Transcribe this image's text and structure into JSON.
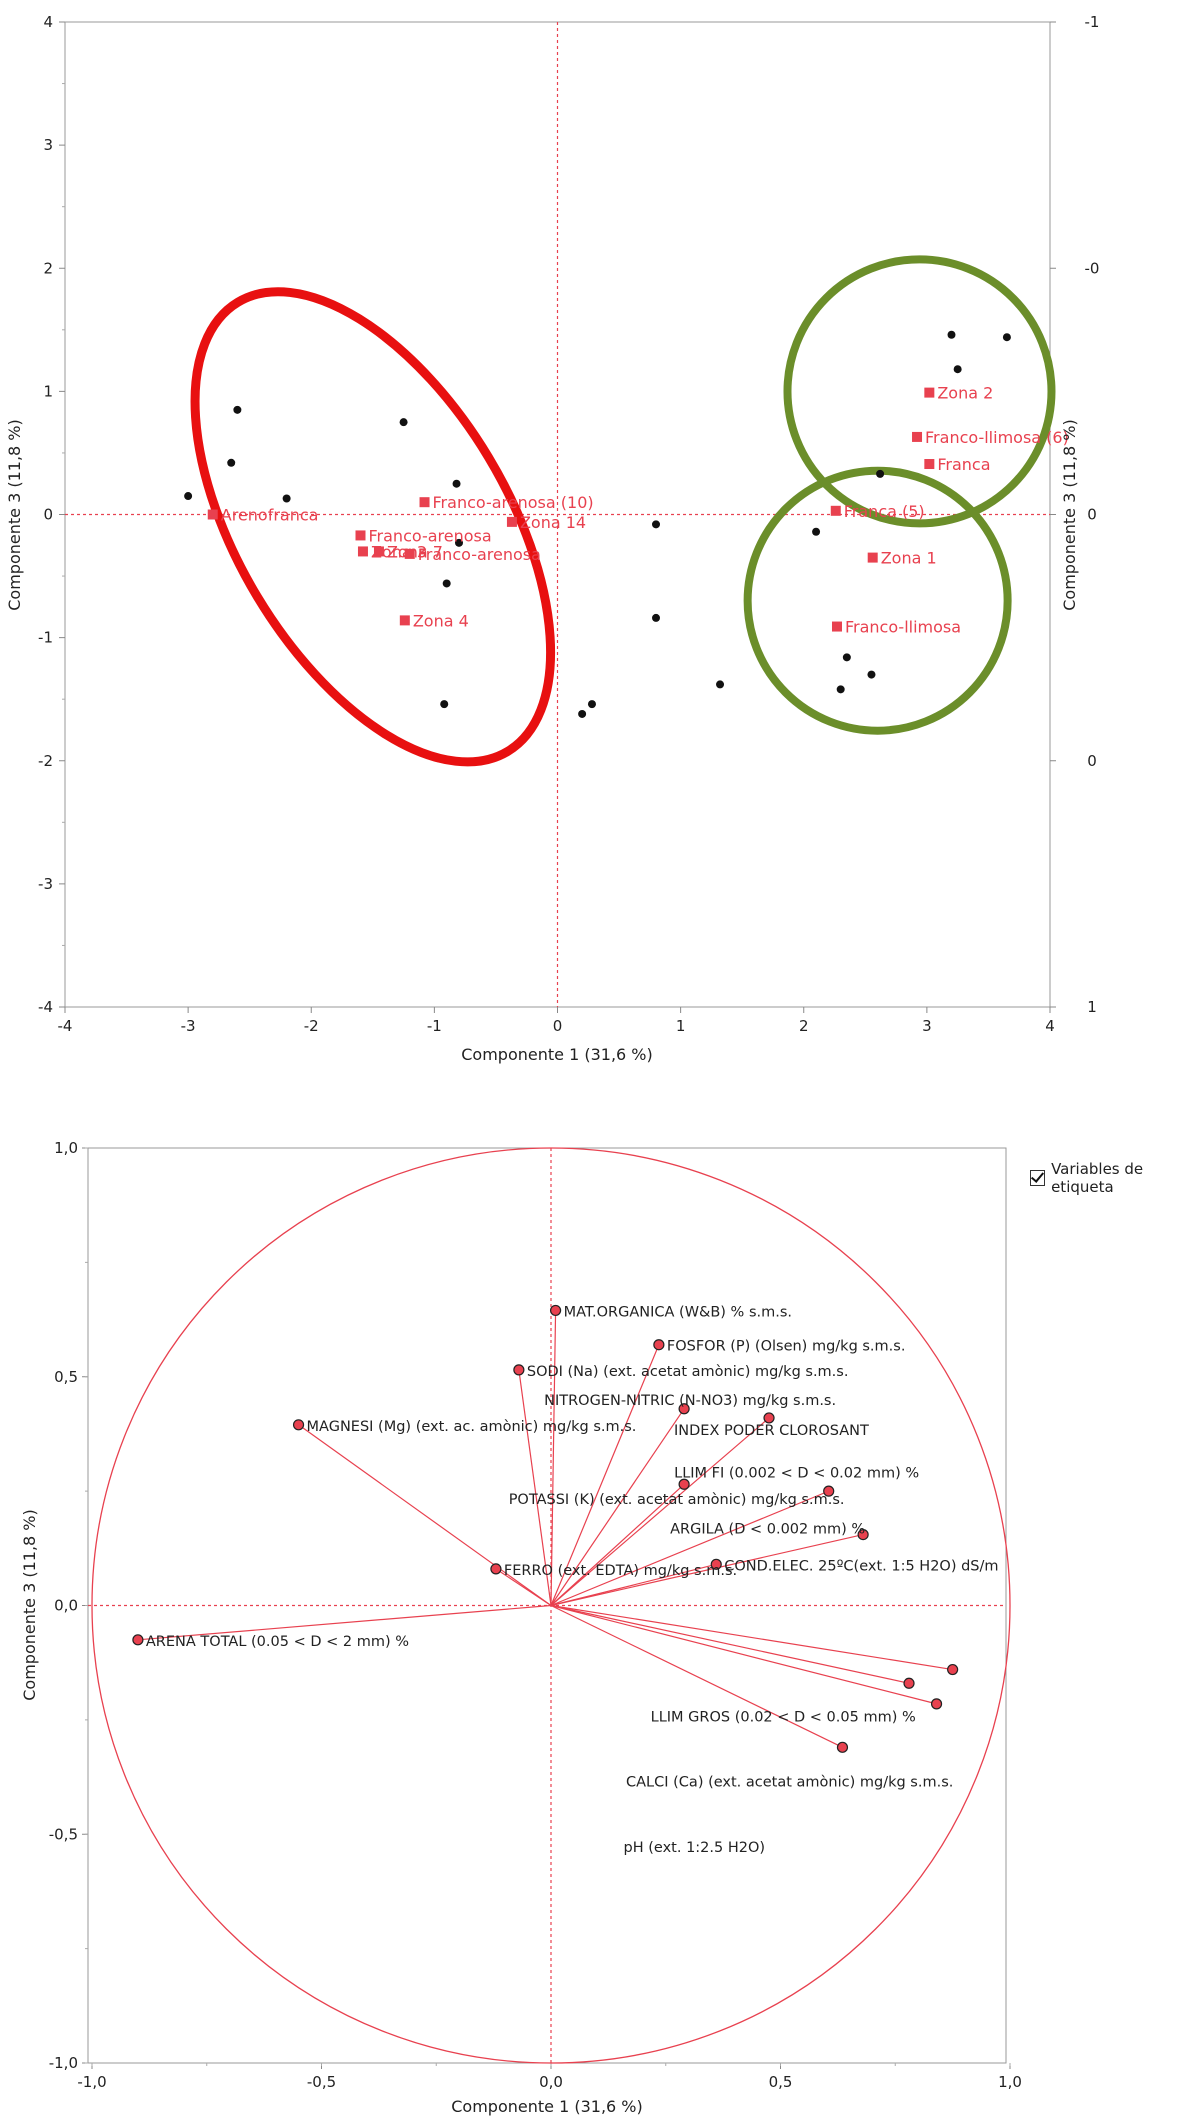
{
  "chart_data": [
    {
      "type": "scatter",
      "xlabel": "Componente 1  (31,6 %)",
      "ylabel": "Componente 3  (11,8 %)",
      "ylabel_right": "Componente 3  (11,8 %)",
      "xlim": [
        -4,
        4
      ],
      "ylim": [
        -4,
        4
      ],
      "xticks": [
        "-4",
        "-3",
        "-2",
        "-1",
        "0",
        "1",
        "2",
        "3",
        "4"
      ],
      "yticks": [
        "-4",
        "-3",
        "-2",
        "-1",
        "0",
        "1",
        "2",
        "3",
        "4"
      ],
      "yticks_right": [
        "-1",
        "-0",
        "0",
        "0",
        "1"
      ],
      "observations": [
        [
          -3.0,
          0.15
        ],
        [
          -2.6,
          0.85
        ],
        [
          -2.65,
          0.42
        ],
        [
          -2.2,
          0.13
        ],
        [
          -1.25,
          0.75
        ],
        [
          -0.82,
          0.25
        ],
        [
          -0.8,
          -0.23
        ],
        [
          -0.9,
          -0.56
        ],
        [
          -0.92,
          -1.54
        ],
        [
          0.2,
          -1.62
        ],
        [
          0.28,
          -1.54
        ],
        [
          0.8,
          -0.08
        ],
        [
          0.8,
          -0.84
        ],
        [
          1.32,
          -1.38
        ],
        [
          2.1,
          -0.14
        ],
        [
          2.62,
          0.33
        ],
        [
          2.35,
          -1.16
        ],
        [
          2.3,
          -1.42
        ],
        [
          2.55,
          -1.3
        ],
        [
          3.2,
          1.46
        ],
        [
          3.25,
          1.18
        ],
        [
          3.65,
          1.44
        ]
      ],
      "labeled_points": [
        {
          "label": "Arenofranca",
          "x": -2.8,
          "y": 0.0
        },
        {
          "label": "Franco-arenosa (10)",
          "x": -1.08,
          "y": 0.1
        },
        {
          "label": "Franco-arenosa",
          "x": -1.6,
          "y": -0.17
        },
        {
          "label": "Zona 3",
          "x": -1.58,
          "y": -0.3
        },
        {
          "label": "Zona 7",
          "x": -1.45,
          "y": -0.3
        },
        {
          "label": "Franco-arenosa",
          "x": -1.2,
          "y": -0.32
        },
        {
          "label": "Zona 14",
          "x": -0.37,
          "y": -0.06
        },
        {
          "label": "Zona 4",
          "x": -1.24,
          "y": -0.86
        },
        {
          "label": "Zona 2",
          "x": 3.02,
          "y": 0.99
        },
        {
          "label": "Franco-llimosa (6)",
          "x": 2.92,
          "y": 0.63
        },
        {
          "label": "Franca",
          "x": 3.02,
          "y": 0.41
        },
        {
          "label": "Franca (5)",
          "x": 2.26,
          "y": 0.03
        },
        {
          "label": "Zona 1",
          "x": 2.56,
          "y": -0.35
        },
        {
          "label": "Franco-llimosa",
          "x": 2.27,
          "y": -0.91
        }
      ]
    },
    {
      "type": "scatter",
      "xlabel": "Componente 1  (31,6 %)",
      "ylabel": "Componente 3  (11,8 %)",
      "xlim": [
        -1.0,
        1.0
      ],
      "ylim": [
        -1.0,
        1.0
      ],
      "xticks": [
        "-1,0",
        "-0,5",
        "0,0",
        "0,5",
        "1,0"
      ],
      "yticks": [
        "-1,0",
        "-0,5",
        "0,0",
        "0,5",
        "1,0"
      ],
      "legend": "Variables de etiqueta",
      "variables": [
        {
          "label": "MAT.ORGANICA  (W&B)  % s.m.s.",
          "x": 0.01,
          "y": 0.645
        },
        {
          "label": "FOSFOR (P) (Olsen)  mg/kg s.m.s.",
          "x": 0.235,
          "y": 0.57
        },
        {
          "label": "SODI (Na) (ext. acetat amònic)  mg/kg s.m.s.",
          "x": -0.07,
          "y": 0.515
        },
        {
          "label": "NITROGEN-NITRIC (N-NO3)  mg/kg s.m.s.",
          "x": 0.29,
          "y": 0.43
        },
        {
          "label": "INDEX PODER CLOROSANT",
          "x": 0.475,
          "y": 0.41
        },
        {
          "label": "MAGNESI (Mg) (ext. ac. amònic)  mg/kg s.m.s.",
          "x": -0.55,
          "y": 0.395
        },
        {
          "label": "LLIM FI (0.002 < D < 0.02 mm)  %",
          "x": 0.29,
          "y": 0.265
        },
        {
          "label": "POTASSI (K) (ext. acetat amònic)  mg/kg s.m.s.",
          "x": 0.605,
          "y": 0.25
        },
        {
          "label": "ARGILA (D < 0.002 mm)  %",
          "x": 0.68,
          "y": 0.155
        },
        {
          "label": "FERRO (ext. EDTA)  mg/kg s.m.s.",
          "x": -0.12,
          "y": 0.08
        },
        {
          "label": "COND.ELEC. 25ºC(ext. 1:5 H2O)  dS/m",
          "x": 0.36,
          "y": 0.09
        },
        {
          "label": "ARENA TOTAL (0.05 < D < 2 mm)  %",
          "x": -0.9,
          "y": -0.075
        },
        {
          "label": "LLIM GROS (0.02 < D < 0.05 mm)  %",
          "x": 0.875,
          "y": -0.14
        },
        {
          "label": "CALCI (Ca) (ext. acetat amònic)  mg/kg s.m.s.",
          "x": 0.78,
          "y": -0.17
        },
        {
          "label": "pH (ext. 1:2.5 H2O)",
          "x": 0.84,
          "y": -0.215
        },
        {
          "label": "",
          "x": 0.635,
          "y": -0.31
        }
      ]
    }
  ],
  "colors": {
    "accent": "#e8414f",
    "circle": "#6b8e2a",
    "ellipse": "#e81010"
  }
}
